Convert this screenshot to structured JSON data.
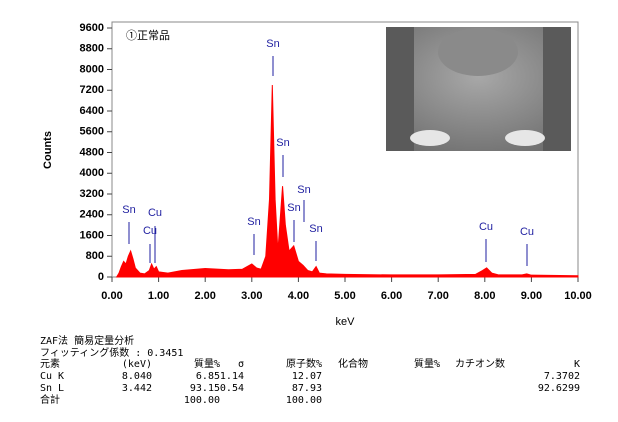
{
  "chart_data": {
    "type": "area",
    "title": "①正常品",
    "x_label": "keV",
    "y_label": "Counts",
    "color": "#ff0000",
    "x": [
      0.1,
      0.15,
      0.2,
      0.25,
      0.3,
      0.35,
      0.4,
      0.45,
      0.5,
      0.6,
      0.7,
      0.8,
      0.85,
      0.9,
      0.95,
      1.0,
      1.2,
      1.5,
      2.0,
      2.5,
      2.8,
      3.0,
      3.1,
      3.2,
      3.3,
      3.38,
      3.44,
      3.5,
      3.56,
      3.62,
      3.66,
      3.72,
      3.8,
      3.9,
      4.0,
      4.1,
      4.2,
      4.3,
      4.38,
      4.45,
      4.6,
      5.0,
      6.0,
      7.0,
      7.8,
      7.95,
      8.04,
      8.15,
      8.3,
      8.8,
      8.9,
      9.0,
      10.0
    ],
    "values": [
      0,
      150,
      400,
      600,
      500,
      800,
      1000,
      700,
      350,
      150,
      120,
      250,
      500,
      300,
      400,
      200,
      150,
      250,
      330,
      280,
      300,
      500,
      350,
      300,
      800,
      3000,
      7400,
      3000,
      1000,
      2500,
      3500,
      2000,
      1000,
      1200,
      600,
      450,
      250,
      200,
      400,
      150,
      120,
      100,
      80,
      80,
      100,
      250,
      350,
      150,
      80,
      80,
      120,
      70,
      50
    ],
    "annotations": [
      "Sn",
      "Cu",
      "Cu",
      "Sn",
      "Sn",
      "Sn",
      "Sn",
      "Sn",
      "Sn",
      "Cu",
      "Cu"
    ],
    "xlim": [
      0,
      10
    ],
    "xticks": [
      {
        "value": 0,
        "label": "0.00"
      },
      {
        "value": 1,
        "label": "1.00"
      },
      {
        "value": 2,
        "label": "2.00"
      },
      {
        "value": 3,
        "label": "3.00"
      },
      {
        "value": 4,
        "label": "4.00"
      },
      {
        "value": 5,
        "label": "5.00"
      },
      {
        "value": 6,
        "label": "6.00"
      },
      {
        "value": 7,
        "label": "7.00"
      },
      {
        "value": 8,
        "label": "8.00"
      },
      {
        "value": 9,
        "label": "9.00"
      },
      {
        "value": 10,
        "label": "10.00"
      }
    ],
    "ylim": [
      0,
      9600
    ],
    "yticks": [
      0,
      800,
      1600,
      2400,
      3200,
      4000,
      4800,
      5600,
      6400,
      7200,
      8000,
      8800,
      9600
    ]
  },
  "table": {
    "title": "ZAF法 簡易定量分析",
    "fitting": "フィッティング係数 : 0.3451",
    "header": [
      "元素",
      "(keV)",
      "質量%",
      "σ",
      "原子数%",
      "化合物",
      "質量%",
      "カチオン数",
      "K"
    ],
    "rows": [
      {
        "label": "Cu K",
        "values": [
          "8.040",
          "6.85",
          "1.14",
          "12.07",
          "7.3702"
        ]
      },
      {
        "label": "Sn L",
        "values": [
          "3.442",
          "93.15",
          "0.54",
          "87.93",
          "92.6299"
        ]
      },
      {
        "label": "合計",
        "values": [
          "100.00",
          "100.00"
        ]
      }
    ]
  }
}
